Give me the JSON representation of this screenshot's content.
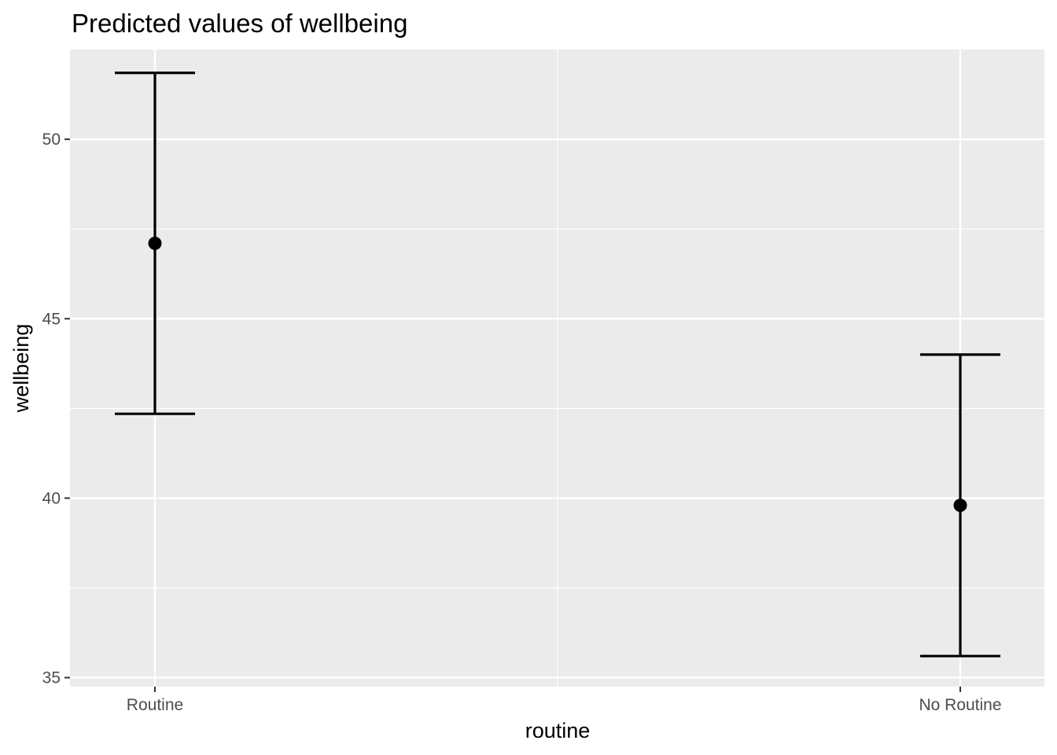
{
  "chart_data": {
    "type": "errorbar",
    "title": "Predicted values of wellbeing",
    "xlabel": "routine",
    "ylabel": "wellbeing",
    "categories": [
      "Routine",
      "No Routine"
    ],
    "points": [
      {
        "category": "Routine",
        "value": 47.1,
        "lower": 42.35,
        "upper": 51.85
      },
      {
        "category": "No Routine",
        "value": 39.8,
        "lower": 35.6,
        "upper": 44.0
      }
    ],
    "y_ticks": [
      35,
      40,
      45,
      50
    ],
    "y_tick_labels": [
      "35",
      "40",
      "45",
      "50"
    ],
    "ylim": [
      34.75,
      52.5
    ],
    "grid": true,
    "legend": "none",
    "colors": {
      "panel": "#ebebeb",
      "grid": "#ffffff",
      "marks": "#000000",
      "tick_text": "#4d4d4d"
    }
  }
}
